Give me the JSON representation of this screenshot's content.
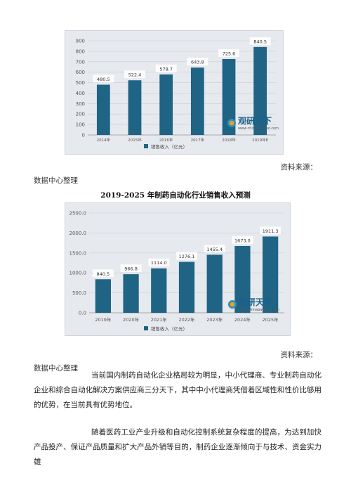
{
  "charts": [
    {
      "type": "bar",
      "categories": [
        "2014年",
        "2015年",
        "2016年",
        "2017年",
        "2018年",
        "2019年E"
      ],
      "values": [
        480.5,
        522.4,
        578.7,
        643.8,
        725.6,
        840.5
      ],
      "value_labels": [
        "480.5",
        "522.4",
        "578.7",
        "643.8",
        "725.6",
        "840.5"
      ],
      "yticks": [
        "0",
        "100",
        "200",
        "300",
        "400",
        "500",
        "600",
        "700",
        "800",
        "900"
      ],
      "ylim": [
        0,
        900
      ],
      "legend": "销售收入（亿元）",
      "bar_color": "#1f6485",
      "title": ""
    },
    {
      "type": "bar",
      "categories": [
        "2019年",
        "2020年",
        "2021年",
        "2022年",
        "2023年",
        "2024年",
        "2025年"
      ],
      "values": [
        840.5,
        966.8,
        1114.0,
        1276.1,
        1455.4,
        1673.0,
        1911.3
      ],
      "value_labels": [
        "840.5",
        "966.8",
        "1114.0",
        "1276.1",
        "1455.4",
        "1673.0",
        "1911.3"
      ],
      "yticks": [
        "0.0",
        "500.0",
        "1000.0",
        "1500.0",
        "2000.0",
        "2500.0"
      ],
      "ylim": [
        0,
        2500
      ],
      "legend": "销售收入（亿元）",
      "bar_color": "#1f6485",
      "title": "2019-2025 年制药自动化行业销售收入预测"
    }
  ],
  "watermark": {
    "cn": "观研天下",
    "url": "www.chinabaogao.com"
  },
  "source_label_1": "资料来源：",
  "org_label_1": "数据中心整理",
  "source_label_2": "资料来源：",
  "org_label_2": "数据中心整理",
  "paragraph_1": "当前国内制药自动化企业格局较为明显，中小代理商、专业制药自动化企业和综合自动化解决方案供应商三分天下，其中中小代理商凭借着区域性和性价比够用的优势，在当前具有优势地位。",
  "paragraph_2": "随着医药工业产业升级和自动化控制系统复杂程度的提高，为达到加快产品投产、保证产品质量和扩大产品外销等目的，制药企业逐渐倾向于与技术、资金实力雄"
}
